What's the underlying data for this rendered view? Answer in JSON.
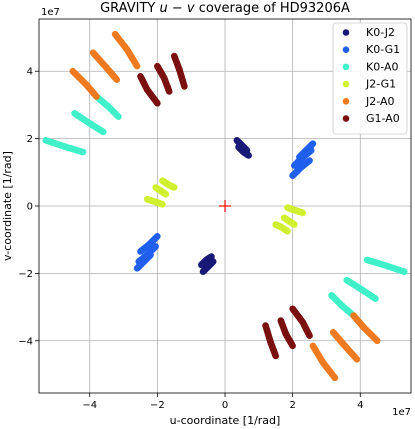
{
  "chart_data": {
    "type": "scatter",
    "title_prefix": "GRAVITY ",
    "title_math": "u − v",
    "title_suffix": " coverage of HD93206A",
    "xlabel": "u-coordinate [1/rad]",
    "ylabel": "v-coordinate [1/rad]",
    "x_offset_label": "1e7",
    "y_offset_label": "1e7",
    "scale": 10000000,
    "xlim": [
      -5.5,
      5.5
    ],
    "ylim": [
      -5.55,
      5.55
    ],
    "xticks": [
      -4,
      -2,
      0,
      2,
      4
    ],
    "yticks": [
      -4,
      -2,
      0,
      2,
      4
    ],
    "grid": true,
    "legend_position": "top-right",
    "center_marker": {
      "x": 0,
      "y": 0,
      "symbol": "+",
      "color": "#ff0000"
    },
    "series": [
      {
        "name": "K0-J2",
        "color": "#1a1a78",
        "tracks": [
          {
            "x": [
              0.35,
              0.5,
              0.65
            ],
            "y": [
              1.95,
              1.8,
              1.65
            ]
          },
          {
            "x": [
              0.4,
              0.55,
              0.7
            ],
            "y": [
              1.75,
              1.6,
              1.5
            ]
          },
          {
            "x": [
              -0.35,
              -0.5,
              -0.65
            ],
            "y": [
              -1.65,
              -1.8,
              -1.95
            ]
          },
          {
            "x": [
              -0.4,
              -0.55,
              -0.7
            ],
            "y": [
              -1.5,
              -1.6,
              -1.75
            ]
          }
        ]
      },
      {
        "name": "K0-G1",
        "color": "#2060f0",
        "tracks": [
          {
            "x": [
              2.0,
              2.25,
              2.5
            ],
            "y": [
              0.9,
              1.15,
              1.35
            ]
          },
          {
            "x": [
              2.05,
              2.3,
              2.55
            ],
            "y": [
              1.2,
              1.45,
              1.65
            ]
          },
          {
            "x": [
              2.2,
              2.4,
              2.6
            ],
            "y": [
              1.45,
              1.65,
              1.85
            ]
          },
          {
            "x": [
              -2.0,
              -2.25,
              -2.5
            ],
            "y": [
              -0.9,
              -1.15,
              -1.35
            ]
          },
          {
            "x": [
              -2.05,
              -2.3,
              -2.55
            ],
            "y": [
              -1.2,
              -1.45,
              -1.65
            ]
          },
          {
            "x": [
              -2.2,
              -2.4,
              -2.6
            ],
            "y": [
              -1.45,
              -1.65,
              -1.85
            ]
          }
        ]
      },
      {
        "name": "K0-A0",
        "color": "#40f0c8",
        "tracks": [
          {
            "x": [
              4.2,
              4.7,
              5.3
            ],
            "y": [
              -1.6,
              -1.75,
              -1.95
            ]
          },
          {
            "x": [
              3.6,
              4.0,
              4.45
            ],
            "y": [
              -2.2,
              -2.45,
              -2.75
            ]
          },
          {
            "x": [
              3.15,
              3.45,
              3.8
            ],
            "y": [
              -2.65,
              -2.95,
              -3.25
            ]
          },
          {
            "x": [
              -4.2,
              -4.7,
              -5.3
            ],
            "y": [
              1.6,
              1.75,
              1.95
            ]
          },
          {
            "x": [
              -3.6,
              -4.0,
              -4.45
            ],
            "y": [
              2.2,
              2.45,
              2.75
            ]
          },
          {
            "x": [
              -3.15,
              -3.45,
              -3.8
            ],
            "y": [
              2.65,
              2.95,
              3.25
            ]
          }
        ]
      },
      {
        "name": "J2-G1",
        "color": "#d0f030",
        "tracks": [
          {
            "x": [
              1.85,
              2.05,
              2.3
            ],
            "y": [
              -0.05,
              -0.12,
              -0.2
            ]
          },
          {
            "x": [
              1.75,
              1.9,
              2.05
            ],
            "y": [
              -0.35,
              -0.45,
              -0.55
            ]
          },
          {
            "x": [
              1.5,
              1.65,
              1.85
            ],
            "y": [
              -0.55,
              -0.62,
              -0.75
            ]
          },
          {
            "x": [
              -1.85,
              -2.05,
              -2.3
            ],
            "y": [
              0.05,
              0.12,
              0.2
            ]
          },
          {
            "x": [
              -1.75,
              -1.9,
              -2.05
            ],
            "y": [
              0.35,
              0.45,
              0.55
            ]
          },
          {
            "x": [
              -1.5,
              -1.65,
              -1.85
            ],
            "y": [
              0.55,
              0.62,
              0.75
            ]
          }
        ]
      },
      {
        "name": "J2-A0",
        "color": "#f07a20",
        "tracks": [
          {
            "x": [
              2.6,
              2.9,
              3.25
            ],
            "y": [
              -4.15,
              -4.65,
              -5.1
            ]
          },
          {
            "x": [
              3.2,
              3.5,
              3.9
            ],
            "y": [
              -3.75,
              -4.1,
              -4.55
            ]
          },
          {
            "x": [
              3.8,
              4.1,
              4.5
            ],
            "y": [
              -3.25,
              -3.6,
              -4.0
            ]
          },
          {
            "x": [
              -2.6,
              -2.9,
              -3.25
            ],
            "y": [
              4.15,
              4.65,
              5.1
            ]
          },
          {
            "x": [
              -3.2,
              -3.5,
              -3.9
            ],
            "y": [
              3.75,
              4.1,
              4.55
            ]
          },
          {
            "x": [
              -3.8,
              -4.1,
              -4.5
            ],
            "y": [
              3.25,
              3.6,
              4.0
            ]
          }
        ]
      },
      {
        "name": "G1-A0",
        "color": "#7a1010",
        "tracks": [
          {
            "x": [
              1.2,
              1.35,
              1.5
            ],
            "y": [
              -3.55,
              -4.05,
              -4.45
            ]
          },
          {
            "x": [
              1.65,
              1.8,
              2.0
            ],
            "y": [
              -3.4,
              -3.8,
              -4.15
            ]
          },
          {
            "x": [
              2.0,
              2.3,
              2.5
            ],
            "y": [
              -3.05,
              -3.45,
              -3.85
            ]
          },
          {
            "x": [
              -1.2,
              -1.35,
              -1.5
            ],
            "y": [
              3.55,
              4.05,
              4.45
            ]
          },
          {
            "x": [
              -1.65,
              -1.8,
              -2.0
            ],
            "y": [
              3.4,
              3.8,
              4.15
            ]
          },
          {
            "x": [
              -2.0,
              -2.3,
              -2.5
            ],
            "y": [
              3.05,
              3.45,
              3.85
            ]
          }
        ]
      }
    ]
  }
}
